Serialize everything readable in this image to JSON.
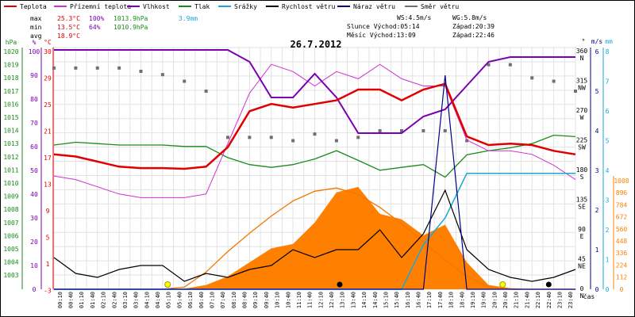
{
  "chart_data": {
    "type": "line",
    "title": "26.7.2012",
    "xlabel": "čas",
    "legend": [
      {
        "name": "Teplota",
        "color": "#e00000"
      },
      {
        "name": "Přízemní teplota",
        "color": "#d030d0"
      },
      {
        "name": "Vlhkost",
        "color": "#7a00b0"
      },
      {
        "name": "Tlak",
        "color": "#1a8a1a"
      },
      {
        "name": "Srážky",
        "color": "#18a8d8"
      },
      {
        "name": "Rychlost větru",
        "color": "#000000"
      },
      {
        "name": "Náraz větru",
        "color": "#00008a"
      },
      {
        "name": "Směr větru",
        "color": "#707070"
      }
    ],
    "stats": {
      "max": {
        "label": "max",
        "temp": "25.3°C",
        "hum": "100%",
        "press": "1013.9hPa",
        "rain": "3.9mm"
      },
      "min": {
        "label": "min",
        "temp": "13.5°C",
        "hum": "64%",
        "press": "1010.9hPa"
      },
      "avg": {
        "label": "avg",
        "temp": "18.9°C"
      }
    },
    "info": {
      "ws": "WS:4.5m/s",
      "wg": "WG:5.8m/s",
      "sun": "Slunce Východ:05:14",
      "sun_set": "Západ:20:39",
      "moon": "Měsíc Východ:13:09",
      "moon_set": "Západ:22:46"
    },
    "axes": {
      "hpa": {
        "unit": "hPa",
        "ticks": [
          "1020",
          "1019",
          "1018",
          "1017",
          "1016",
          "1015",
          "1014",
          "1013",
          "1012",
          "1011",
          "1010",
          "1009",
          "1008",
          "1007",
          "1006",
          "1005",
          "1004",
          "1003"
        ],
        "color": "#1a8a1a"
      },
      "pct": {
        "unit": "%",
        "ticks": [
          "100",
          "90",
          "80",
          "70",
          "60",
          "50",
          "40",
          "30",
          "20",
          "10",
          "0"
        ],
        "color": "#7a00b0"
      },
      "temp": {
        "unit": "°C",
        "ticks": [
          "30",
          "29",
          "25",
          "21",
          "17",
          "13",
          "9",
          "5",
          "1",
          "-3"
        ],
        "color": "#e00000"
      },
      "dir": {
        "unit": "°",
        "ticks": [
          "360 N",
          "315 NW",
          "270 W",
          "225 SW",
          "180 S",
          "135 SE",
          "90 E",
          "45 NE",
          "0 N"
        ]
      },
      "ms": {
        "unit": "m/s",
        "ticks": [
          "6",
          "5",
          "4",
          "3",
          "2",
          "1",
          "0"
        ],
        "color": "#00008a"
      },
      "mm": {
        "unit": "mm",
        "ticks": [
          "8",
          "7",
          "6",
          "5",
          "4",
          "3",
          "2",
          "1",
          "0"
        ],
        "color": "#18a8d8"
      },
      "sol": {
        "ticks": [
          "1008",
          "896",
          "784",
          "672",
          "560",
          "448",
          "336",
          "224",
          "112",
          "0"
        ],
        "color": "#ff8000"
      }
    },
    "x_ticks": [
      "00:10",
      "00:40",
      "01:10",
      "01:40",
      "02:10",
      "02:40",
      "03:10",
      "03:40",
      "04:10",
      "04:40",
      "05:10",
      "05:40",
      "06:10",
      "06:40",
      "07:10",
      "07:40",
      "08:10",
      "08:40",
      "09:10",
      "09:40",
      "10:10",
      "10:40",
      "11:10",
      "11:40",
      "12:10",
      "12:40",
      "13:10",
      "13:40",
      "14:10",
      "14:40",
      "15:10",
      "15:40",
      "16:10",
      "16:40",
      "17:10",
      "17:40",
      "18:10",
      "18:40",
      "19:10",
      "19:40",
      "20:10",
      "20:40",
      "21:10",
      "21:40",
      "22:10",
      "22:40",
      "23:10",
      "23:40"
    ],
    "x_hours": [
      0,
      1,
      2,
      3,
      4,
      5,
      6,
      7,
      8,
      9,
      10,
      11,
      12,
      13,
      14,
      15,
      16,
      17,
      18,
      19,
      20,
      21,
      22,
      23,
      24
    ],
    "temperature_c": [
      15.5,
      15.2,
      14.5,
      13.8,
      13.6,
      13.6,
      13.5,
      13.8,
      16.5,
      21.5,
      22.5,
      22.0,
      22.5,
      23.0,
      24.5,
      24.5,
      23.0,
      24.5,
      25.3,
      18.0,
      16.8,
      17.0,
      16.8,
      16.0,
      15.5
    ],
    "ground_temp_c": [
      12.5,
      12.0,
      11.0,
      10.0,
      9.5,
      9.5,
      9.5,
      10.0,
      17.0,
      24.0,
      28.0,
      27.0,
      25.0,
      27.0,
      26.0,
      28.0,
      26.0,
      25.0,
      25.0,
      17.5,
      16.0,
      16.0,
      15.5,
      14.0,
      12.0
    ],
    "humidity_pct": [
      100,
      100,
      100,
      100,
      100,
      100,
      100,
      100,
      100,
      95,
      80,
      80,
      90,
      80,
      65,
      65,
      65,
      72,
      75,
      85,
      95,
      97,
      97,
      97,
      97
    ],
    "pressure_hpa": [
      1013.2,
      1013.4,
      1013.3,
      1013.2,
      1013.2,
      1013.2,
      1013.1,
      1013.1,
      1012.3,
      1011.8,
      1011.6,
      1011.8,
      1012.2,
      1012.8,
      1012.1,
      1011.4,
      1011.6,
      1011.8,
      1010.9,
      1012.5,
      1012.8,
      1013.0,
      1013.3,
      1013.9,
      1013.8
    ],
    "rain_mm": [
      0,
      0,
      0,
      0,
      0,
      0,
      0,
      0,
      0,
      0,
      0,
      0,
      0,
      0,
      0,
      0,
      0,
      1.5,
      2.4,
      3.9,
      3.9,
      3.9,
      3.9,
      3.9,
      3.9
    ],
    "wind_ms": [
      0.8,
      0.4,
      0.3,
      0.5,
      0.6,
      0.6,
      0.2,
      0.4,
      0.3,
      0.5,
      0.6,
      1.0,
      0.8,
      1.0,
      1.0,
      1.5,
      0.8,
      1.4,
      2.5,
      1.0,
      0.5,
      0.3,
      0.2,
      0.3,
      0.5
    ],
    "gust_ms": [
      0,
      0,
      0,
      0,
      0,
      0,
      0,
      0,
      0,
      0,
      0,
      0,
      0,
      0,
      0,
      0,
      0,
      0,
      5.4,
      0,
      0,
      0,
      0,
      0,
      0
    ],
    "wind_dir_deg": [
      335,
      335,
      335,
      335,
      330,
      325,
      315,
      300,
      230,
      230,
      230,
      225,
      235,
      225,
      230,
      240,
      240,
      240,
      240,
      225,
      340,
      340,
      320,
      315,
      300
    ],
    "solar_wm2": [
      0,
      0,
      0,
      0,
      0,
      0,
      5,
      40,
      120,
      250,
      380,
      420,
      620,
      900,
      950,
      700,
      650,
      500,
      600,
      250,
      40,
      10,
      2,
      0,
      0
    ],
    "sun_curve_wm2": [
      0,
      0,
      0,
      0,
      0,
      0,
      20,
      160,
      350,
      520,
      680,
      820,
      910,
      940,
      880,
      760,
      610,
      440,
      270,
      120,
      20,
      0,
      0,
      0,
      0
    ]
  }
}
